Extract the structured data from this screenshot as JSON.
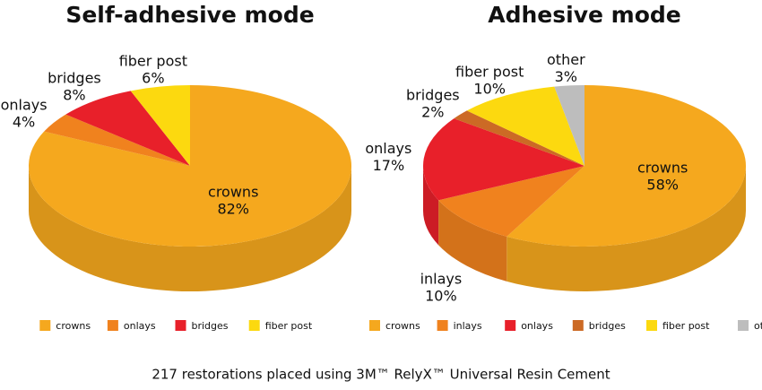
{
  "chart_data": [
    {
      "type": "pie",
      "title": "Self-adhesive mode",
      "categories": [
        "crowns",
        "onlays",
        "bridges",
        "fiber post"
      ],
      "values": [
        82,
        4,
        8,
        6
      ],
      "value_labels": [
        "82%",
        "4%",
        "8%",
        "6%"
      ],
      "colors": [
        "#f5a81e",
        "#f0821e",
        "#e8202a",
        "#fcd90f"
      ]
    },
    {
      "type": "pie",
      "title": "Adhesive mode",
      "categories": [
        "crowns",
        "inlays",
        "onlays",
        "bridges",
        "fiber post",
        "other"
      ],
      "values": [
        58,
        10,
        17,
        2,
        10,
        3
      ],
      "value_labels": [
        "58%",
        "10%",
        "17%",
        "2%",
        "10%",
        "3%"
      ],
      "colors": [
        "#f5a81e",
        "#f0821e",
        "#e8202a",
        "#cc6a25",
        "#fcd90f",
        "#bdbdbd"
      ]
    }
  ],
  "caption": "217 restorations placed using 3M™ RelyX™ Universal Resin Cement"
}
